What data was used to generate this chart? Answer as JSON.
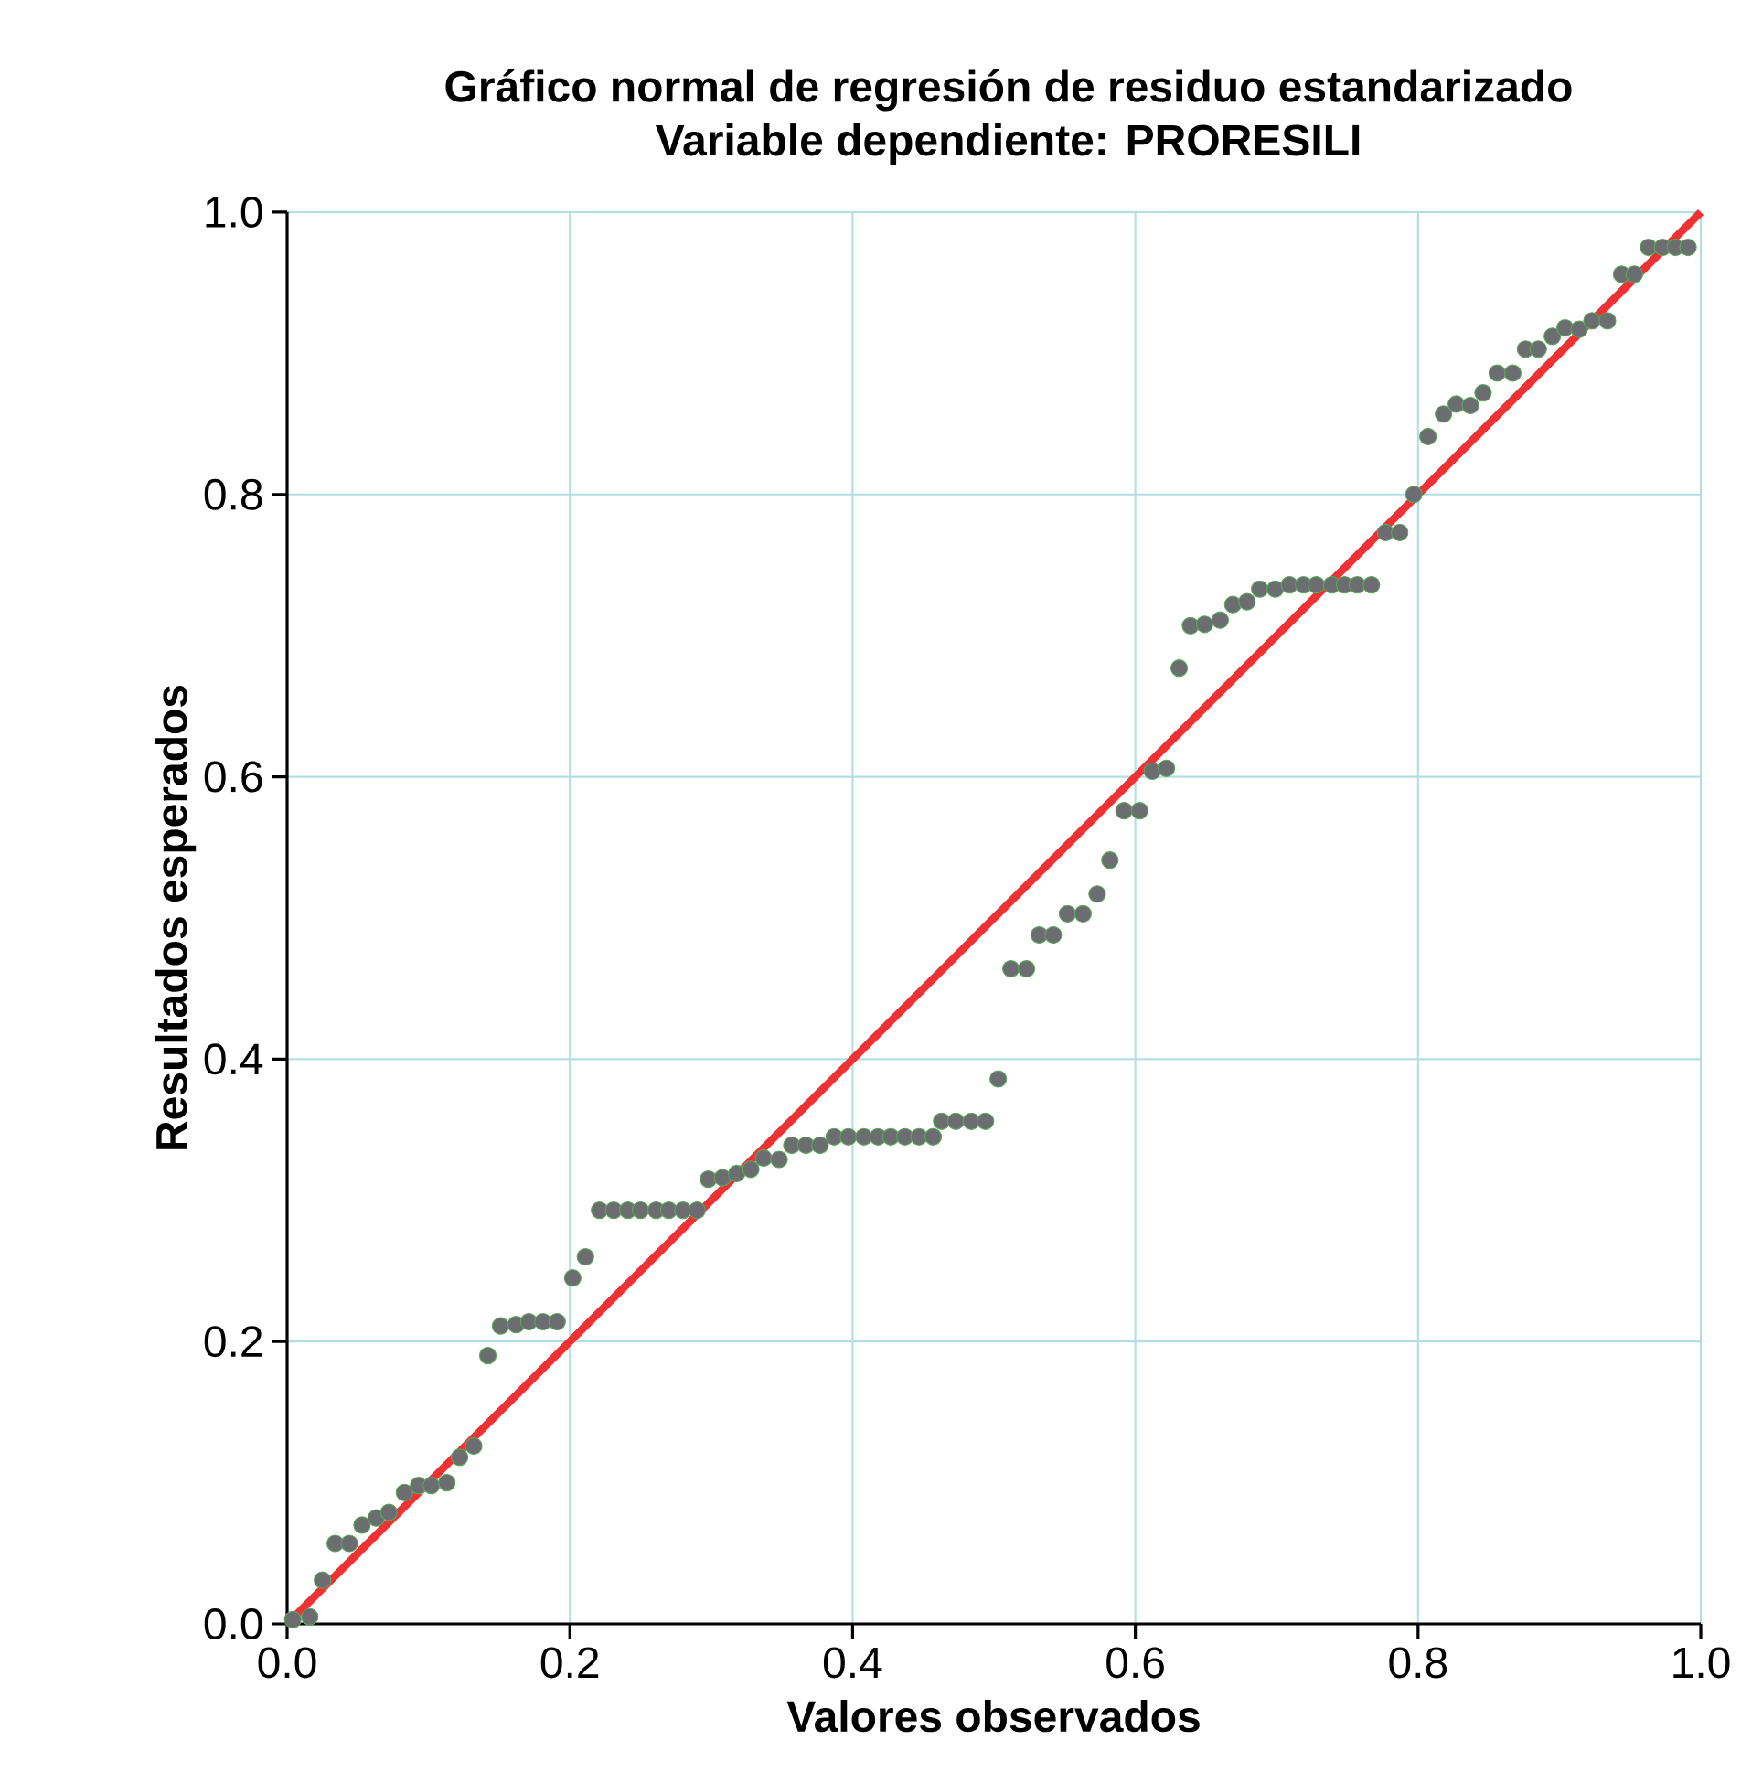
{
  "chart_data": {
    "type": "scatter",
    "title": "Gráfico normal de regresión de residuo estandarizado",
    "subtitle": "Variable dependiente: PRORESILI",
    "xlabel": "Valores observados",
    "ylabel": "Resultados esperados",
    "xlim": [
      0,
      1
    ],
    "ylim": [
      0,
      1
    ],
    "xticks": [
      {
        "value": 0,
        "label": "0.0"
      },
      0.2,
      0.4,
      0.6,
      0.8,
      {
        "value": 1,
        "label": "1.0"
      }
    ],
    "yticks": [
      {
        "value": 0,
        "label": "0.0"
      },
      0.2,
      0.4,
      0.6,
      0.8,
      {
        "value": 1,
        "label": "1.0"
      }
    ],
    "grid": true,
    "series": [
      {
        "marker": "circle",
        "color": "#6b6d70",
        "x": [
          0.004,
          0.016,
          0.025,
          0.034,
          0.044,
          0.053,
          0.063,
          0.072,
          0.083,
          0.093,
          0.102,
          0.113,
          0.122,
          0.132,
          0.142,
          0.151,
          0.162,
          0.171,
          0.181,
          0.191,
          0.202,
          0.211,
          0.221,
          0.231,
          0.241,
          0.25,
          0.261,
          0.27,
          0.28,
          0.29,
          0.298,
          0.308,
          0.318,
          0.328,
          0.337,
          0.348,
          0.357,
          0.367,
          0.377,
          0.387,
          0.397,
          0.408,
          0.418,
          0.427,
          0.437,
          0.447,
          0.457,
          0.463,
          0.473,
          0.484,
          0.494,
          0.503,
          0.512,
          0.523,
          0.532,
          0.542,
          0.552,
          0.563,
          0.573,
          0.582,
          0.592,
          0.603,
          0.612,
          0.622,
          0.631,
          0.639,
          0.649,
          0.66,
          0.669,
          0.679,
          0.688,
          0.699,
          0.709,
          0.719,
          0.728,
          0.739,
          0.748,
          0.757,
          0.767,
          0.777,
          0.787,
          0.797,
          0.807,
          0.818,
          0.827,
          0.837,
          0.846,
          0.856,
          0.867,
          0.876,
          0.885,
          0.895,
          0.904,
          0.914,
          0.923,
          0.934,
          0.944,
          0.953,
          0.963,
          0.973,
          0.982,
          0.991
        ],
        "values": [
          0.003,
          0.005,
          0.031,
          0.057,
          0.057,
          0.07,
          0.075,
          0.079,
          0.093,
          0.098,
          0.098,
          0.1,
          0.118,
          0.126,
          0.19,
          0.211,
          0.212,
          0.214,
          0.214,
          0.214,
          0.245,
          0.26,
          0.293,
          0.293,
          0.293,
          0.293,
          0.293,
          0.293,
          0.293,
          0.293,
          0.315,
          0.316,
          0.319,
          0.322,
          0.33,
          0.329,
          0.339,
          0.339,
          0.339,
          0.345,
          0.345,
          0.345,
          0.345,
          0.345,
          0.345,
          0.345,
          0.345,
          0.356,
          0.356,
          0.356,
          0.356,
          0.386,
          0.464,
          0.464,
          0.488,
          0.488,
          0.503,
          0.503,
          0.517,
          0.541,
          0.576,
          0.576,
          0.604,
          0.606,
          0.677,
          0.707,
          0.708,
          0.711,
          0.722,
          0.724,
          0.733,
          0.733,
          0.736,
          0.736,
          0.736,
          0.736,
          0.736,
          0.736,
          0.736,
          0.773,
          0.773,
          0.8,
          0.841,
          0.857,
          0.864,
          0.863,
          0.872,
          0.886,
          0.886,
          0.903,
          0.903,
          0.912,
          0.918,
          0.917,
          0.923,
          0.923,
          0.956,
          0.956,
          0.975,
          0.975,
          0.975,
          0.975
        ]
      },
      {
        "type": "line",
        "marker": "none",
        "color": "#ee3233",
        "x": [
          0,
          1
        ],
        "values": [
          0,
          1
        ]
      }
    ]
  }
}
